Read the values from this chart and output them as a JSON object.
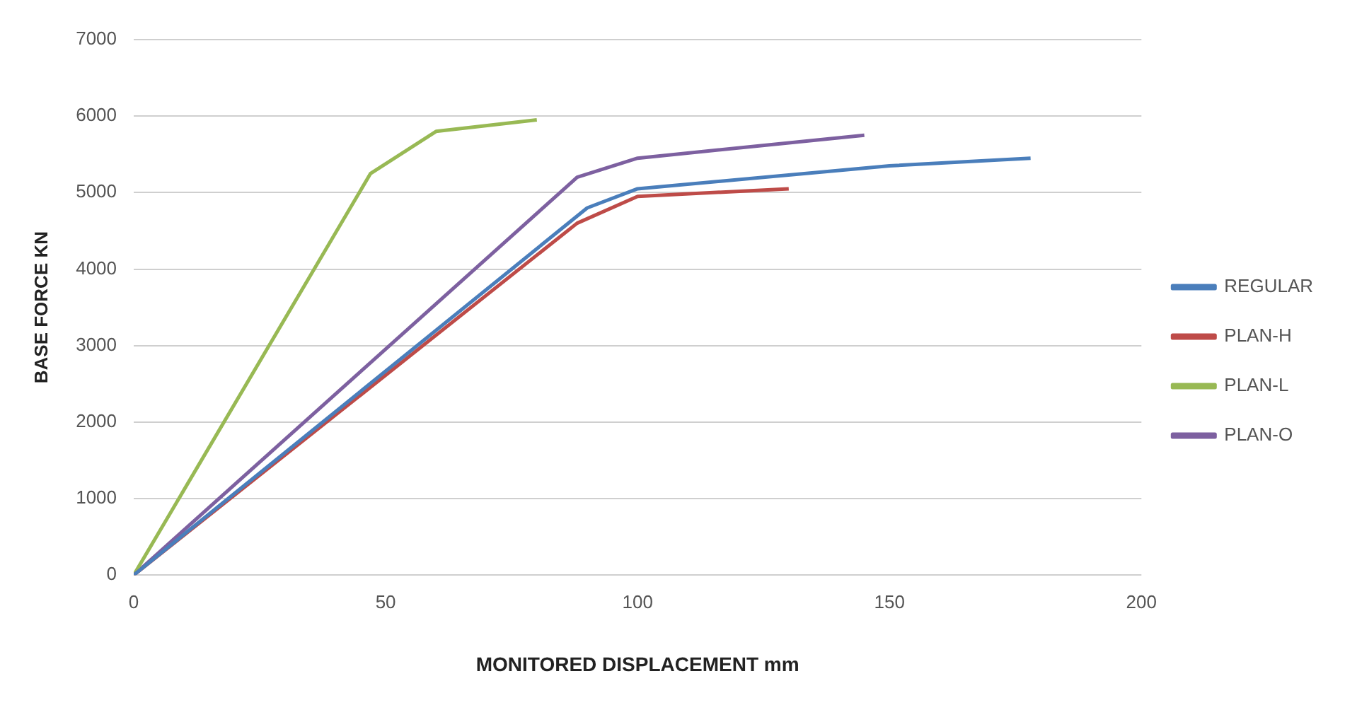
{
  "chart_data": {
    "type": "line",
    "xlabel": "MONITORED DISPLACEMENT mm",
    "ylabel": "BASE FORCE KN",
    "xlim": [
      0,
      200
    ],
    "xticks": [
      0,
      50,
      100,
      150,
      200
    ],
    "ylim": [
      0,
      7000
    ],
    "yticks": [
      0,
      1000,
      2000,
      3000,
      4000,
      5000,
      6000,
      7000
    ],
    "grid": "y",
    "legend": "right",
    "marker": "none",
    "series": [
      {
        "name": "REGULAR",
        "color": "#4a7ebb",
        "x": [
          0,
          90,
          100,
          150,
          178
        ],
        "values": [
          0,
          4800,
          5050,
          5350,
          5450
        ]
      },
      {
        "name": "PLAN-H",
        "color": "#be4b48",
        "x": [
          0,
          88,
          100,
          130
        ],
        "values": [
          0,
          4600,
          4950,
          5050
        ]
      },
      {
        "name": "PLAN-L",
        "color": "#98b954",
        "x": [
          0,
          47,
          60,
          80
        ],
        "values": [
          0,
          5250,
          5800,
          5950
        ]
      },
      {
        "name": "PLAN-O",
        "color": "#7d60a0",
        "x": [
          0,
          88,
          100,
          145
        ],
        "values": [
          0,
          5200,
          5450,
          5750
        ]
      }
    ]
  }
}
